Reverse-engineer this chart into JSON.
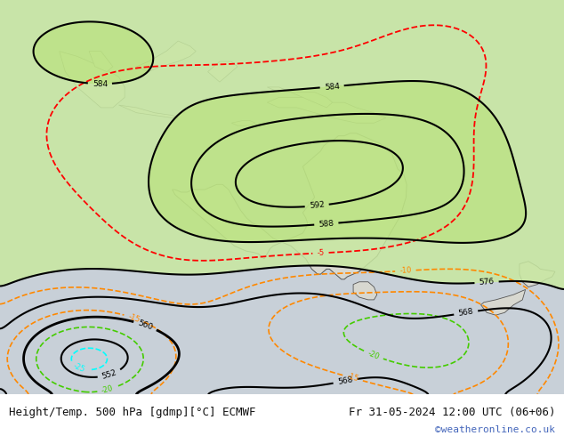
{
  "title_left": "Height/Temp. 500 hPa [gdmp][°C] ECMWF",
  "title_right": "Fr 31-05-2024 12:00 UTC (06+06)",
  "credit": "©weatheronline.co.uk",
  "bg_color": "#c8d0d8",
  "land_color": "#d8d8d0",
  "green_fill": "#b8e090",
  "font_color_main": "#111111",
  "font_color_credit": "#4466bb",
  "bottom_bar_color": "#ffffff",
  "figsize": [
    6.34,
    4.9
  ],
  "dpi": 100,
  "lon_min": 85,
  "lon_max": 180,
  "lat_min": -62,
  "lat_max": 15
}
